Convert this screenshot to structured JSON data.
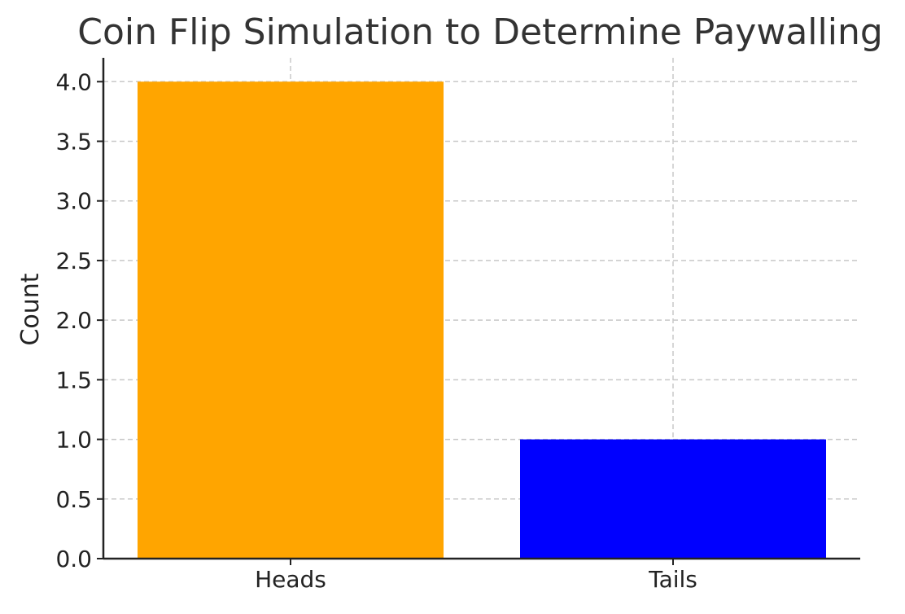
{
  "chart_data": {
    "type": "bar",
    "title": "Coin Flip Simulation to Determine Paywalling",
    "xlabel": "",
    "ylabel": "Count",
    "categories": [
      "Heads",
      "Tails"
    ],
    "values": [
      4,
      1
    ],
    "colors": [
      "#FFA500",
      "#0000FF"
    ],
    "ylim": [
      0,
      4.2
    ],
    "yticks": [
      "0.0",
      "0.5",
      "1.0",
      "1.5",
      "2.0",
      "2.5",
      "3.0",
      "3.5",
      "4.0"
    ],
    "grid": true
  }
}
